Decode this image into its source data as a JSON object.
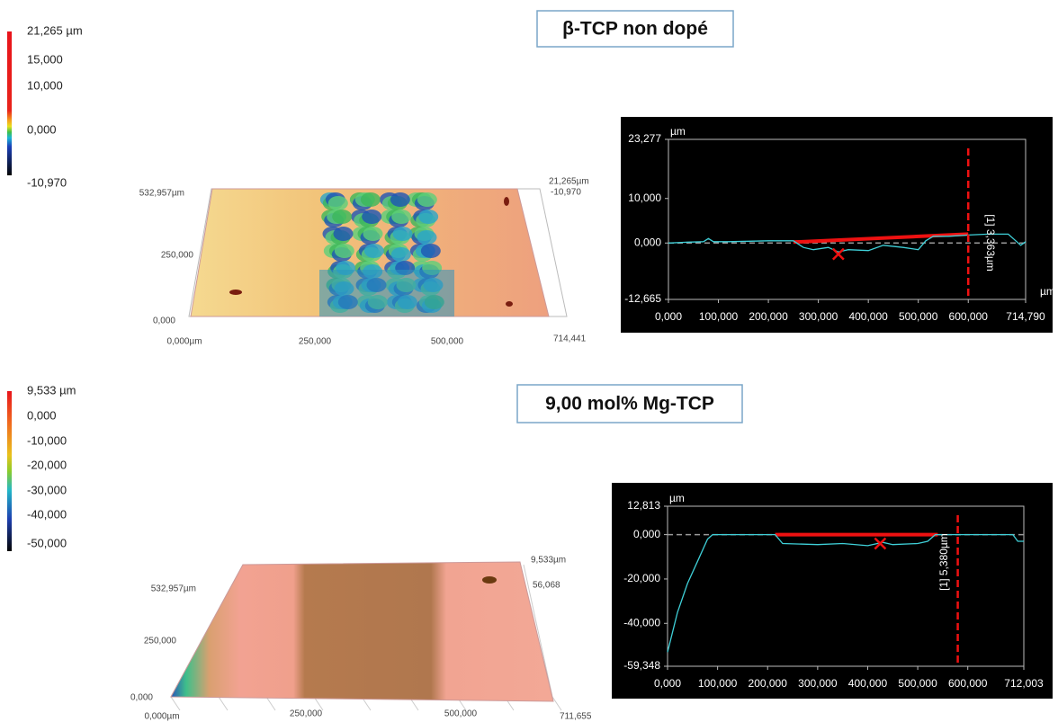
{
  "panels": [
    {
      "title": "β-TCP non dopé",
      "colorbar": [
        "21,265 µm",
        "15,000",
        "10,000",
        "0,000",
        "-10,970"
      ],
      "surface_labels": [
        "21,265µm",
        "-10,970",
        "532,957µm",
        "250,000",
        "0,000",
        "0,000µm",
        "250,000",
        "500,000",
        "714,441"
      ]
    },
    {
      "title": "9,00 mol% Mg-TCP",
      "colorbar": [
        "9,533 µm",
        "0,000",
        "-10,000",
        "-20,000",
        "-30,000",
        "-40,000",
        "-50,000"
      ],
      "surface_labels": [
        "9,533µm",
        "56,068",
        "532,957µm",
        "250,000",
        "0,000",
        "0,000µm",
        "250,000",
        "500,000",
        "711,655"
      ]
    }
  ],
  "chart_data": [
    {
      "type": "line",
      "y_unit": "µm",
      "x_unit": "µm",
      "annotation": "[1] 3,363µm",
      "x": [
        0,
        40,
        70,
        80,
        90,
        120,
        200,
        250,
        270,
        290,
        320,
        340,
        360,
        400,
        430,
        470,
        500,
        515,
        530,
        560,
        600,
        640,
        680,
        695,
        705,
        714.79
      ],
      "series": [
        {
          "color": "#3fd0d8",
          "values": [
            0,
            0.2,
            0.3,
            1,
            0.3,
            0.3,
            0.5,
            0.5,
            -1,
            -1.5,
            -1,
            -2,
            -1.5,
            -1.7,
            -0.5,
            -1,
            -1.5,
            0.5,
            1.5,
            1.5,
            1.8,
            2,
            2,
            0.5,
            -0.5,
            0.3
          ]
        }
      ],
      "xlim": [
        0,
        714.79
      ],
      "ylim": [
        -12.665,
        23.277
      ],
      "xticks": [
        {
          "value": 0,
          "label": "0,000"
        },
        {
          "value": 100,
          "label": "100,000"
        },
        {
          "value": 200,
          "label": "200,000"
        },
        {
          "value": 300,
          "label": "300,000"
        },
        {
          "value": 400,
          "label": "400,000"
        },
        {
          "value": 500,
          "label": "500,000"
        },
        {
          "value": 600,
          "label": "600,000"
        },
        {
          "value": 714.79,
          "label": "714,790"
        }
      ],
      "yticks": [
        {
          "value": -12.665,
          "label": "-12,665"
        },
        {
          "value": 0,
          "label": "0,000"
        },
        {
          "value": 10,
          "label": "10,000"
        },
        {
          "value": 23.277,
          "label": "23,277"
        }
      ]
    },
    {
      "type": "line",
      "y_unit": "µm",
      "annotation": "[1] 5,380µm",
      "x": [
        0,
        20,
        40,
        60,
        80,
        90,
        100,
        200,
        215,
        230,
        300,
        350,
        400,
        430,
        450,
        500,
        520,
        535,
        545,
        600,
        690,
        700,
        712.003
      ],
      "series": [
        {
          "color": "#3fd0d8",
          "values": [
            -53,
            -35,
            -22,
            -12,
            -2,
            0,
            0,
            0,
            0,
            -4,
            -4.5,
            -4,
            -5,
            -3.5,
            -4.5,
            -4,
            -3,
            0,
            0,
            0,
            0,
            -3,
            -3
          ]
        }
      ],
      "xlim": [
        0,
        712.003
      ],
      "ylim": [
        -59.348,
        12.813
      ],
      "xticks": [
        {
          "value": 0,
          "label": "0,000"
        },
        {
          "value": 100,
          "label": "100,000"
        },
        {
          "value": 200,
          "label": "200,000"
        },
        {
          "value": 300,
          "label": "300,000"
        },
        {
          "value": 400,
          "label": "400,000"
        },
        {
          "value": 500,
          "label": "500,000"
        },
        {
          "value": 600,
          "label": "600,000"
        },
        {
          "value": 712.003,
          "label": "712,003"
        }
      ],
      "yticks": [
        {
          "value": -59.348,
          "label": "-59,348"
        },
        {
          "value": -40,
          "label": "-40,000"
        },
        {
          "value": -20,
          "label": "-20,000"
        },
        {
          "value": 0,
          "label": "0,000"
        },
        {
          "value": 12.813,
          "label": "12,813"
        }
      ]
    }
  ]
}
